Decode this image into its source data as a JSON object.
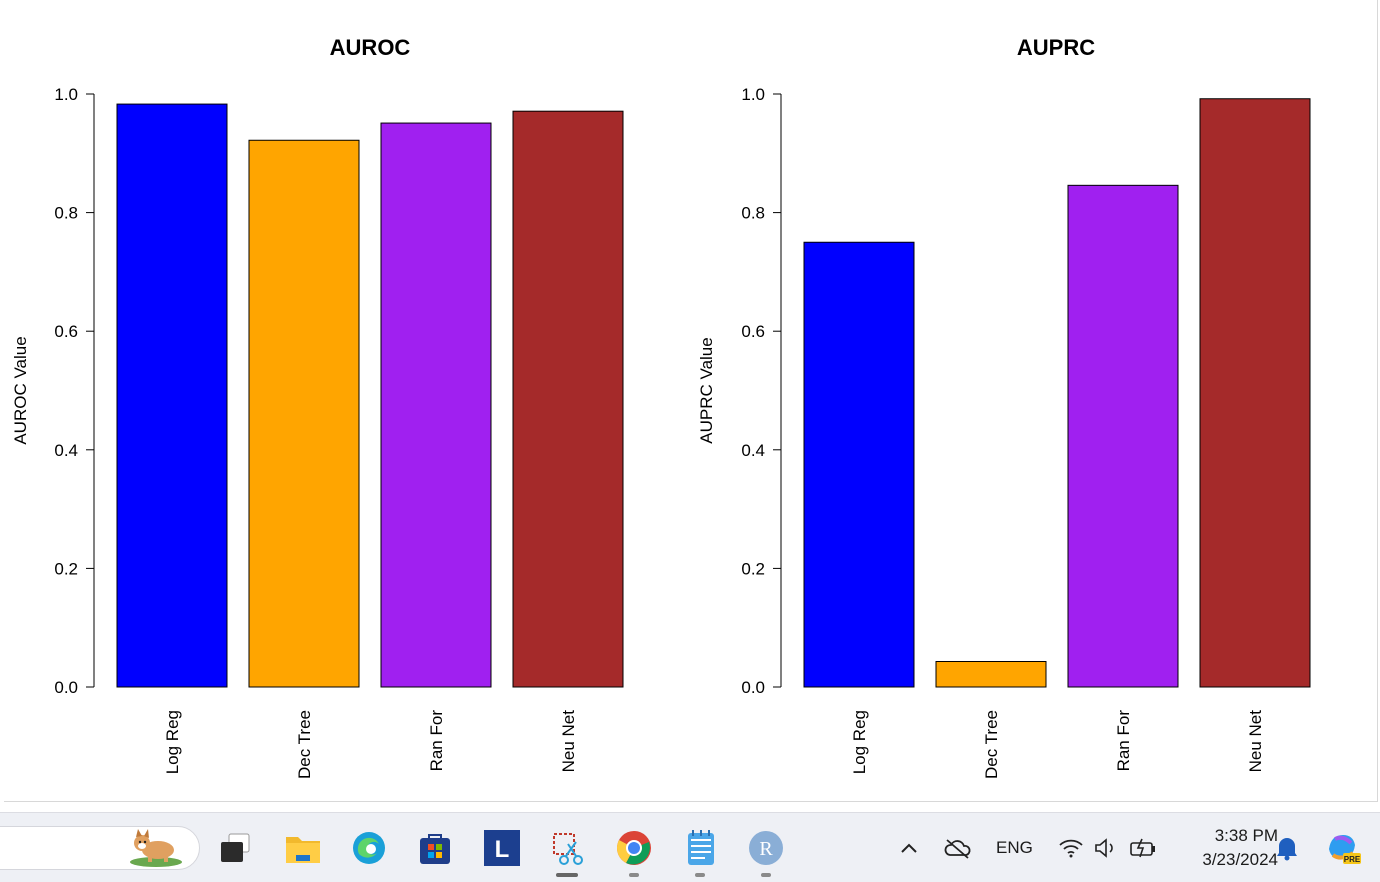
{
  "chart_data": [
    {
      "type": "bar",
      "title": "AUROC",
      "ylabel": "AUROC Value",
      "xlabel": "",
      "ylim": [
        0,
        1.0
      ],
      "yticks": [
        "0.0",
        "0.2",
        "0.4",
        "0.6",
        "0.8",
        "1.0"
      ],
      "categories": [
        "Log Reg",
        "Dec Tree",
        "Ran For",
        "Neu Net"
      ],
      "values": [
        0.983,
        0.922,
        0.951,
        0.971
      ],
      "colors": [
        "#0000FF",
        "#FFA500",
        "#A020F0",
        "#A52A2A"
      ],
      "grid": false
    },
    {
      "type": "bar",
      "title": "AUPRC",
      "ylabel": "AUPRC Value",
      "xlabel": "",
      "ylim": [
        0,
        1.0
      ],
      "yticks": [
        "0.0",
        "0.2",
        "0.4",
        "0.6",
        "0.8",
        "1.0"
      ],
      "categories": [
        "Log Reg",
        "Dec Tree",
        "Ran For",
        "Neu Net"
      ],
      "values": [
        0.75,
        0.043,
        0.846,
        0.992
      ],
      "colors": [
        "#0000FF",
        "#FFA500",
        "#A020F0",
        "#A52A2A"
      ],
      "grid": false
    }
  ],
  "taskbar": {
    "apps": [
      {
        "name": "corgi-widget-icon"
      },
      {
        "name": "task-view-icon"
      },
      {
        "name": "file-explorer-icon"
      },
      {
        "name": "edge-icon"
      },
      {
        "name": "microsoft-store-icon"
      },
      {
        "name": "l-app-icon",
        "letter": "L"
      },
      {
        "name": "snipping-tool-icon"
      },
      {
        "name": "chrome-icon"
      },
      {
        "name": "notepad-icon"
      },
      {
        "name": "r-icon",
        "letter": "R"
      }
    ],
    "tray": {
      "language": "ENG",
      "time": "3:38 PM",
      "date": "3/23/2024",
      "copilot_badge": "PRE"
    }
  }
}
